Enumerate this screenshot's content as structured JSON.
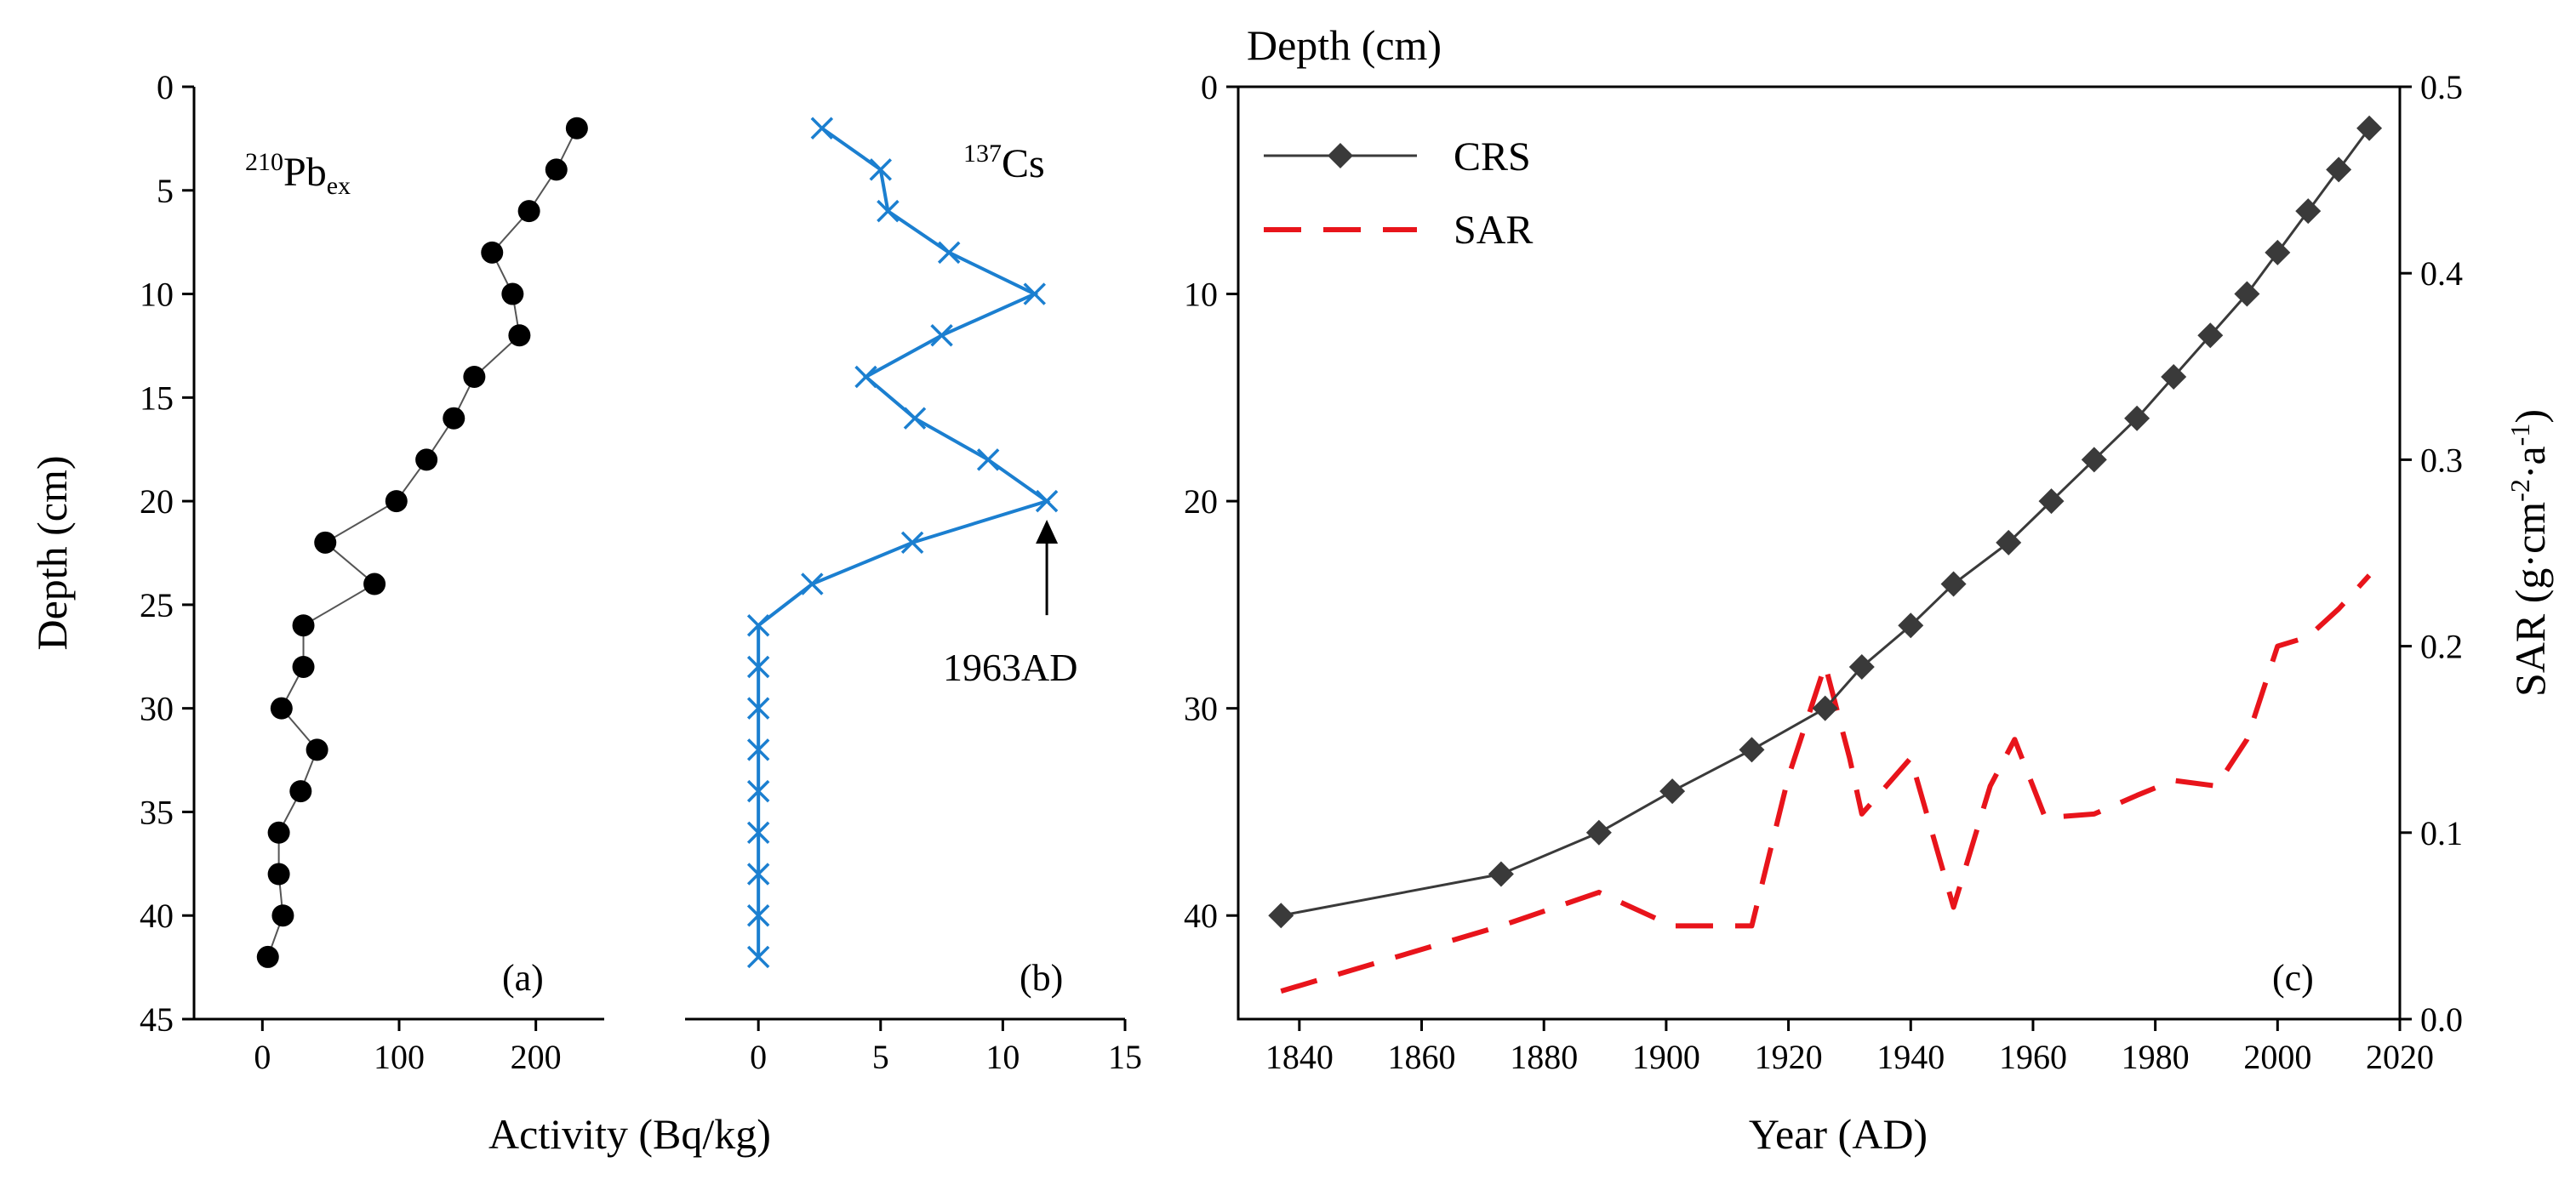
{
  "chart_data": [
    {
      "panel": "a",
      "type": "scatter",
      "title_main": "Pb",
      "title_pre_sup": "210",
      "title_sub": "ex",
      "panel_label": "(a)",
      "xlabel": "Activity (Bq/kg)",
      "ylabel": "Depth (cm)",
      "xlim": [
        -50,
        250
      ],
      "xticks": [
        0,
        100,
        200
      ],
      "ylim": [
        0,
        45
      ],
      "yticks": [
        0,
        5,
        10,
        15,
        20,
        25,
        30,
        35,
        40,
        45
      ],
      "marker": "circle",
      "color": "#000000",
      "series": [
        {
          "name": "210Pbex",
          "x": [
            230,
            215,
            195,
            168,
            183,
            188,
            155,
            140,
            120,
            98,
            46,
            82,
            30,
            30,
            14,
            40,
            28,
            12,
            12,
            15,
            4
          ],
          "y": [
            2,
            4,
            6,
            8,
            10,
            12,
            14,
            16,
            18,
            20,
            22,
            24,
            26,
            28,
            30,
            32,
            34,
            36,
            38,
            40,
            42
          ]
        }
      ]
    },
    {
      "panel": "b",
      "type": "line",
      "title_main": "Cs",
      "title_pre_sup": "137",
      "panel_label": "(b)",
      "annotation": "1963AD",
      "annotation_arrow_from": [
        11.8,
        25.5
      ],
      "annotation_arrow_to": [
        11.8,
        20.9
      ],
      "xlim": [
        -3,
        15
      ],
      "xticks": [
        0,
        5,
        10,
        15
      ],
      "ylim": [
        0,
        45
      ],
      "marker": "x",
      "color": "#1b7fd0",
      "series": [
        {
          "name": "137Cs",
          "x": [
            2.6,
            5.0,
            5.3,
            7.8,
            11.3,
            7.5,
            4.4,
            6.4,
            9.4,
            11.8,
            6.3,
            2.2,
            0,
            0,
            0,
            0,
            0,
            0,
            0,
            0,
            0
          ],
          "y": [
            2,
            4,
            6,
            8,
            10,
            12,
            14,
            16,
            18,
            20,
            22,
            24,
            26,
            28,
            30,
            32,
            34,
            36,
            38,
            40,
            42
          ]
        }
      ]
    },
    {
      "panel": "c",
      "type": "line",
      "panel_label": "(c)",
      "xlabel": "Year (AD)",
      "ylabel_top": "Depth (cm)",
      "ylabel_right": "SAR (g·cm-2·a-1)",
      "ylabel_right_parts": {
        "base1": "SAR (g·cm",
        "sup1": "-2",
        "mid": "·a",
        "sup2": "-1",
        "end": ")"
      },
      "xlim": [
        1830,
        2020
      ],
      "xticks": [
        1840,
        1860,
        1880,
        1900,
        1920,
        1940,
        1960,
        1980,
        2000,
        2020
      ],
      "ylim_left": [
        0,
        45
      ],
      "yticks_left": [
        0,
        10,
        20,
        30,
        40
      ],
      "ylim_right": [
        0,
        0.5
      ],
      "yticks_right": [
        "0.0",
        "0.1",
        "0.2",
        "0.3",
        "0.4",
        "0.5"
      ],
      "legend": [
        "CRS",
        "SAR"
      ],
      "series": [
        {
          "name": "CRS",
          "axis": "left",
          "color": "#3a3a3a",
          "marker": "diamond",
          "x": [
            1837,
            1873,
            1889,
            1901,
            1914,
            1926,
            1932,
            1940,
            1947,
            1956,
            1963,
            1970,
            1977,
            1983,
            1989,
            1995,
            2000,
            2005,
            2010,
            2015
          ],
          "y": [
            40,
            38,
            36,
            34,
            32,
            30,
            28,
            26,
            24,
            22,
            20,
            18,
            16,
            14,
            12,
            10,
            8,
            6,
            4,
            2
          ]
        },
        {
          "name": "SAR",
          "axis": "right",
          "color": "#e8141b",
          "dash": true,
          "x": [
            1837,
            1873,
            1889,
            1901,
            1914,
            1920,
            1924,
            1926,
            1930,
            1932,
            1936,
            1940,
            1947,
            1953,
            1957,
            1962,
            1970,
            1977,
            1983,
            1990,
            1995,
            2000,
            2005,
            2010,
            2015
          ],
          "y": [
            0.015,
            0.05,
            0.068,
            0.05,
            0.05,
            0.13,
            0.17,
            0.19,
            0.14,
            0.11,
            0.125,
            0.14,
            0.06,
            0.125,
            0.15,
            0.108,
            0.11,
            0.12,
            0.128,
            0.125,
            0.15,
            0.2,
            0.205,
            0.22,
            0.238
          ]
        }
      ]
    }
  ]
}
